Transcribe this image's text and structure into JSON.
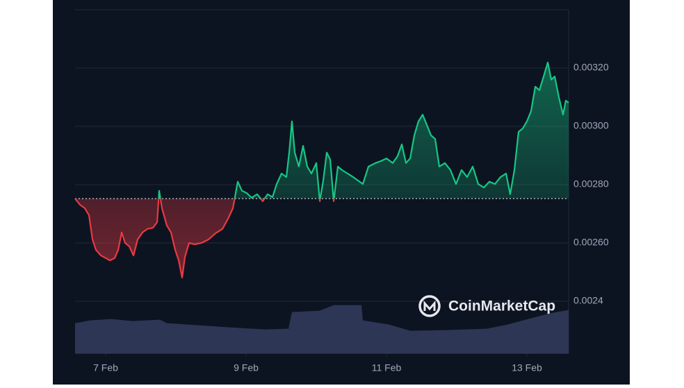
{
  "chart_data": {
    "type": "baseline",
    "watermark": "CoinMarketCap",
    "baseline": 0.002752,
    "color_up": "#16c784",
    "color_down": "#ea3943",
    "volume_color": "#323a5c",
    "xlim": [
      6.564,
      13.594
    ],
    "xticks": [
      {
        "value": 7,
        "label": "7 Feb"
      },
      {
        "value": 9,
        "label": "9 Feb"
      },
      {
        "value": 11,
        "label": "11 Feb"
      },
      {
        "value": 13,
        "label": "13 Feb"
      }
    ],
    "ylim": [
      0.00222,
      0.0034
    ],
    "yticks": [
      {
        "value": 0.0032,
        "label": "0.00320"
      },
      {
        "value": 0.003,
        "label": "0.00300"
      },
      {
        "value": 0.0028,
        "label": "0.00280"
      },
      {
        "value": 0.0026,
        "label": "0.00260"
      },
      {
        "value": 0.0024,
        "label": "0.0024"
      }
    ],
    "grid": true,
    "x": [
      6.564,
      6.634,
      6.703,
      6.762,
      6.812,
      6.861,
      6.931,
      7.0,
      7.059,
      7.129,
      7.178,
      7.228,
      7.277,
      7.337,
      7.396,
      7.455,
      7.525,
      7.594,
      7.673,
      7.733,
      7.762,
      7.802,
      7.871,
      7.931,
      7.99,
      8.04,
      8.089,
      8.129,
      8.188,
      8.267,
      8.366,
      8.465,
      8.564,
      8.663,
      8.743,
      8.812,
      8.881,
      8.941,
      9.01,
      9.079,
      9.158,
      9.238,
      9.307,
      9.376,
      9.436,
      9.505,
      9.574,
      9.614,
      9.653,
      9.693,
      9.752,
      9.812,
      9.871,
      9.931,
      10.0,
      10.05,
      10.099,
      10.149,
      10.198,
      10.248,
      10.307,
      10.366,
      10.446,
      10.525,
      10.594,
      10.663,
      10.743,
      10.842,
      10.921,
      11.0,
      11.089,
      11.158,
      11.218,
      11.277,
      11.337,
      11.396,
      11.455,
      11.515,
      11.574,
      11.634,
      11.693,
      11.752,
      11.832,
      11.911,
      11.99,
      12.069,
      12.149,
      12.228,
      12.307,
      12.386,
      12.465,
      12.545,
      12.624,
      12.703,
      12.762,
      12.822,
      12.881,
      12.941,
      13.0,
      13.059,
      13.119,
      13.178,
      13.238,
      13.297,
      13.347,
      13.396,
      13.455,
      13.515,
      13.554,
      13.594
    ],
    "values": [
      0.002752,
      0.002731,
      0.002719,
      0.002695,
      0.002612,
      0.002576,
      0.002557,
      0.002548,
      0.00254,
      0.002548,
      0.002576,
      0.002636,
      0.0026,
      0.002588,
      0.002557,
      0.002612,
      0.002636,
      0.002648,
      0.002652,
      0.002671,
      0.002779,
      0.002719,
      0.00266,
      0.002636,
      0.002576,
      0.00254,
      0.002481,
      0.002552,
      0.0026,
      0.002595,
      0.0026,
      0.002612,
      0.002633,
      0.002648,
      0.002683,
      0.002719,
      0.00281,
      0.002779,
      0.002771,
      0.002755,
      0.002767,
      0.002743,
      0.002767,
      0.002757,
      0.002802,
      0.002838,
      0.002826,
      0.00291,
      0.003017,
      0.00291,
      0.002862,
      0.002933,
      0.002862,
      0.002838,
      0.002874,
      0.002743,
      0.002814,
      0.00291,
      0.002886,
      0.002743,
      0.002862,
      0.00285,
      0.002838,
      0.002826,
      0.002814,
      0.002802,
      0.002862,
      0.002874,
      0.002881,
      0.00289,
      0.002874,
      0.002898,
      0.002938,
      0.002874,
      0.00289,
      0.002969,
      0.003017,
      0.00304,
      0.003005,
      0.002969,
      0.002957,
      0.002862,
      0.002874,
      0.00285,
      0.002802,
      0.00285,
      0.002826,
      0.002862,
      0.002802,
      0.00279,
      0.00281,
      0.002802,
      0.002826,
      0.002838,
      0.002767,
      0.00285,
      0.002981,
      0.002993,
      0.003017,
      0.003052,
      0.003136,
      0.003124,
      0.003171,
      0.003219,
      0.00316,
      0.003171,
      0.0031,
      0.00304,
      0.003088,
      0.003081
    ],
    "volume": {
      "x": [
        6.564,
        6.782,
        7.079,
        7.376,
        7.772,
        7.871,
        8.465,
        8.762,
        9.257,
        9.604,
        9.653,
        10.05,
        10.248,
        10.644,
        10.663,
        11.04,
        11.337,
        11.832,
        12.426,
        12.723,
        13.02,
        13.317,
        13.594
      ],
      "values": [
        44,
        48,
        50,
        47,
        49,
        44,
        40,
        38,
        35,
        36,
        60,
        62,
        70,
        70,
        48,
        42,
        33,
        34,
        36,
        42,
        50,
        58,
        63
      ]
    }
  }
}
